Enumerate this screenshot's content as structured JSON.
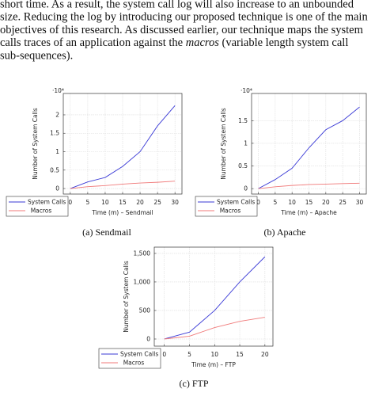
{
  "text": [
    "short time. As a result, the system call log will also increase to an unbounded",
    "size. Reducing the log by introducing our proposed technique is one of the main",
    "objectives of this research. As discussed earlier, our technique maps the system",
    [
      "calls traces of an application against the ",
      "macros",
      " (variable length system call"
    ],
    "sub-sequences)."
  ],
  "chart_data": [
    {
      "type": "line",
      "caption": "(a) Sendmail",
      "xlabel": "Time (m) – Sendmail",
      "ylabel": "Number of System Calls",
      "multiplier": "·10⁴",
      "x": [
        0,
        5,
        10,
        15,
        20,
        25,
        30
      ],
      "xlim": [
        -2,
        32
      ],
      "xticks": [
        0,
        5,
        10,
        15,
        20,
        25,
        30
      ],
      "ylim": [
        -0.15,
        2.58
      ],
      "yticks": [
        0,
        0.5,
        1,
        1.5,
        2
      ],
      "grid": true,
      "series": [
        {
          "name": "System Calls",
          "color": "#3a3ad6",
          "values": [
            0,
            0.18,
            0.3,
            0.6,
            1.0,
            1.7,
            2.25
          ]
        },
        {
          "name": "Macros",
          "color": "#f07a7a",
          "values": [
            0,
            0.05,
            0.08,
            0.12,
            0.15,
            0.17,
            0.2
          ]
        }
      ]
    },
    {
      "type": "line",
      "caption": "(b) Apache",
      "xlabel": "Time (m) – Apache",
      "ylabel": "Number of System Calls",
      "multiplier": "·10⁴",
      "x": [
        0,
        5,
        10,
        15,
        20,
        25,
        30
      ],
      "xlim": [
        -2,
        32
      ],
      "xticks": [
        0,
        5,
        10,
        15,
        20,
        25,
        30
      ],
      "ylim": [
        -0.12,
        2.1
      ],
      "yticks": [
        0,
        0.5,
        1,
        1.5
      ],
      "grid": true,
      "series": [
        {
          "name": "System Calls",
          "color": "#3a3ad6",
          "values": [
            0,
            0.2,
            0.45,
            0.9,
            1.3,
            1.5,
            1.8
          ]
        },
        {
          "name": "Macros",
          "color": "#f07a7a",
          "values": [
            0,
            0.04,
            0.07,
            0.09,
            0.1,
            0.11,
            0.12
          ]
        }
      ]
    },
    {
      "type": "line",
      "caption": "(c) FTP",
      "xlabel": "Time (m) – FTP",
      "ylabel": "Number of System Calls",
      "x": [
        0,
        5,
        10,
        15,
        20
      ],
      "xlim": [
        -2,
        21.6
      ],
      "xticks": [
        0,
        5,
        10,
        15,
        20
      ],
      "ylim": [
        -125,
        1610
      ],
      "yticks": [
        0,
        500,
        {
          "value": 1000,
          "label": "1,000"
        },
        {
          "value": 1500,
          "label": "1,500"
        }
      ],
      "grid": true,
      "series": [
        {
          "name": "System Calls",
          "color": "#3a3ad6",
          "values": [
            0,
            120,
            500,
            1000,
            1440
          ]
        },
        {
          "name": "Macros",
          "color": "#f07a7a",
          "values": [
            0,
            50,
            200,
            310,
            380
          ]
        }
      ]
    }
  ]
}
